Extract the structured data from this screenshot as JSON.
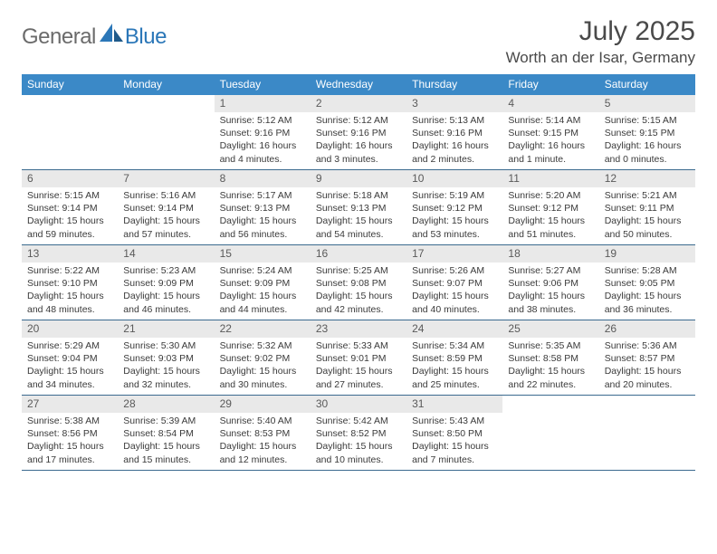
{
  "brand": {
    "part1": "General",
    "part2": "Blue"
  },
  "title": "July 2025",
  "location": "Worth an der Isar, Germany",
  "colors": {
    "header_bg": "#3b89c7",
    "daynum_bg": "#e9e9e9",
    "rule": "#3b6a8f",
    "text": "#333333",
    "brand_gray": "#6b6b6b",
    "brand_blue": "#2b77b8"
  },
  "weekdays": [
    "Sunday",
    "Monday",
    "Tuesday",
    "Wednesday",
    "Thursday",
    "Friday",
    "Saturday"
  ],
  "weeks": [
    [
      null,
      null,
      {
        "n": "1",
        "sr": "5:12 AM",
        "ss": "9:16 PM",
        "dl": "16 hours and 4 minutes."
      },
      {
        "n": "2",
        "sr": "5:12 AM",
        "ss": "9:16 PM",
        "dl": "16 hours and 3 minutes."
      },
      {
        "n": "3",
        "sr": "5:13 AM",
        "ss": "9:16 PM",
        "dl": "16 hours and 2 minutes."
      },
      {
        "n": "4",
        "sr": "5:14 AM",
        "ss": "9:15 PM",
        "dl": "16 hours and 1 minute."
      },
      {
        "n": "5",
        "sr": "5:15 AM",
        "ss": "9:15 PM",
        "dl": "16 hours and 0 minutes."
      }
    ],
    [
      {
        "n": "6",
        "sr": "5:15 AM",
        "ss": "9:14 PM",
        "dl": "15 hours and 59 minutes."
      },
      {
        "n": "7",
        "sr": "5:16 AM",
        "ss": "9:14 PM",
        "dl": "15 hours and 57 minutes."
      },
      {
        "n": "8",
        "sr": "5:17 AM",
        "ss": "9:13 PM",
        "dl": "15 hours and 56 minutes."
      },
      {
        "n": "9",
        "sr": "5:18 AM",
        "ss": "9:13 PM",
        "dl": "15 hours and 54 minutes."
      },
      {
        "n": "10",
        "sr": "5:19 AM",
        "ss": "9:12 PM",
        "dl": "15 hours and 53 minutes."
      },
      {
        "n": "11",
        "sr": "5:20 AM",
        "ss": "9:12 PM",
        "dl": "15 hours and 51 minutes."
      },
      {
        "n": "12",
        "sr": "5:21 AM",
        "ss": "9:11 PM",
        "dl": "15 hours and 50 minutes."
      }
    ],
    [
      {
        "n": "13",
        "sr": "5:22 AM",
        "ss": "9:10 PM",
        "dl": "15 hours and 48 minutes."
      },
      {
        "n": "14",
        "sr": "5:23 AM",
        "ss": "9:09 PM",
        "dl": "15 hours and 46 minutes."
      },
      {
        "n": "15",
        "sr": "5:24 AM",
        "ss": "9:09 PM",
        "dl": "15 hours and 44 minutes."
      },
      {
        "n": "16",
        "sr": "5:25 AM",
        "ss": "9:08 PM",
        "dl": "15 hours and 42 minutes."
      },
      {
        "n": "17",
        "sr": "5:26 AM",
        "ss": "9:07 PM",
        "dl": "15 hours and 40 minutes."
      },
      {
        "n": "18",
        "sr": "5:27 AM",
        "ss": "9:06 PM",
        "dl": "15 hours and 38 minutes."
      },
      {
        "n": "19",
        "sr": "5:28 AM",
        "ss": "9:05 PM",
        "dl": "15 hours and 36 minutes."
      }
    ],
    [
      {
        "n": "20",
        "sr": "5:29 AM",
        "ss": "9:04 PM",
        "dl": "15 hours and 34 minutes."
      },
      {
        "n": "21",
        "sr": "5:30 AM",
        "ss": "9:03 PM",
        "dl": "15 hours and 32 minutes."
      },
      {
        "n": "22",
        "sr": "5:32 AM",
        "ss": "9:02 PM",
        "dl": "15 hours and 30 minutes."
      },
      {
        "n": "23",
        "sr": "5:33 AM",
        "ss": "9:01 PM",
        "dl": "15 hours and 27 minutes."
      },
      {
        "n": "24",
        "sr": "5:34 AM",
        "ss": "8:59 PM",
        "dl": "15 hours and 25 minutes."
      },
      {
        "n": "25",
        "sr": "5:35 AM",
        "ss": "8:58 PM",
        "dl": "15 hours and 22 minutes."
      },
      {
        "n": "26",
        "sr": "5:36 AM",
        "ss": "8:57 PM",
        "dl": "15 hours and 20 minutes."
      }
    ],
    [
      {
        "n": "27",
        "sr": "5:38 AM",
        "ss": "8:56 PM",
        "dl": "15 hours and 17 minutes."
      },
      {
        "n": "28",
        "sr": "5:39 AM",
        "ss": "8:54 PM",
        "dl": "15 hours and 15 minutes."
      },
      {
        "n": "29",
        "sr": "5:40 AM",
        "ss": "8:53 PM",
        "dl": "15 hours and 12 minutes."
      },
      {
        "n": "30",
        "sr": "5:42 AM",
        "ss": "8:52 PM",
        "dl": "15 hours and 10 minutes."
      },
      {
        "n": "31",
        "sr": "5:43 AM",
        "ss": "8:50 PM",
        "dl": "15 hours and 7 minutes."
      },
      null,
      null
    ]
  ],
  "labels": {
    "sunrise": "Sunrise:",
    "sunset": "Sunset:",
    "daylight": "Daylight:"
  }
}
